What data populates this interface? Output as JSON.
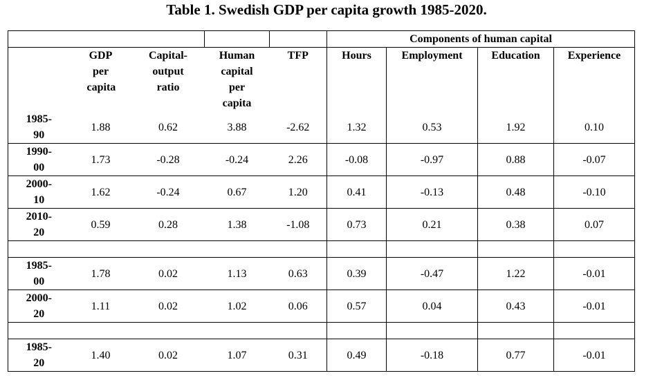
{
  "title": "Table 1. Swedish GDP per capita growth 1985-2020.",
  "table": {
    "group_header": "Components of human capital",
    "columns": [
      "GDP per capita",
      "Capital-output ratio",
      "Human capital per capita",
      "TFP",
      "Hours",
      "Employment",
      "Education",
      "Experience"
    ],
    "sections": [
      {
        "rows": [
          {
            "label": "1985-90",
            "cells": [
              "1.88",
              "0.62",
              "3.88",
              "-2.62",
              "1.32",
              "0.53",
              "1.92",
              "0.10"
            ]
          },
          {
            "label": "1990-00",
            "cells": [
              "1.73",
              "-0.28",
              "-0.24",
              "2.26",
              "-0.08",
              "-0.97",
              "0.88",
              "-0.07"
            ]
          },
          {
            "label": "2000-10",
            "cells": [
              "1.62",
              "-0.24",
              "0.67",
              "1.20",
              "0.41",
              "-0.13",
              "0.48",
              "-0.10"
            ]
          },
          {
            "label": "2010-20",
            "cells": [
              "0.59",
              "0.28",
              "1.38",
              "-1.08",
              "0.73",
              "0.21",
              "0.38",
              "0.07"
            ]
          }
        ]
      },
      {
        "rows": [
          {
            "label": "1985-00",
            "cells": [
              "1.78",
              "0.02",
              "1.13",
              "0.63",
              "0.39",
              "-0.47",
              "1.22",
              "-0.01"
            ]
          },
          {
            "label": "2000-20",
            "cells": [
              "1.11",
              "0.02",
              "1.02",
              "0.06",
              "0.57",
              "0.04",
              "0.43",
              "-0.01"
            ]
          }
        ]
      },
      {
        "rows": [
          {
            "label": "1985-20",
            "cells": [
              "1.40",
              "0.02",
              "1.07",
              "0.31",
              "0.49",
              "-0.18",
              "0.77",
              "-0.01"
            ]
          }
        ]
      }
    ]
  }
}
